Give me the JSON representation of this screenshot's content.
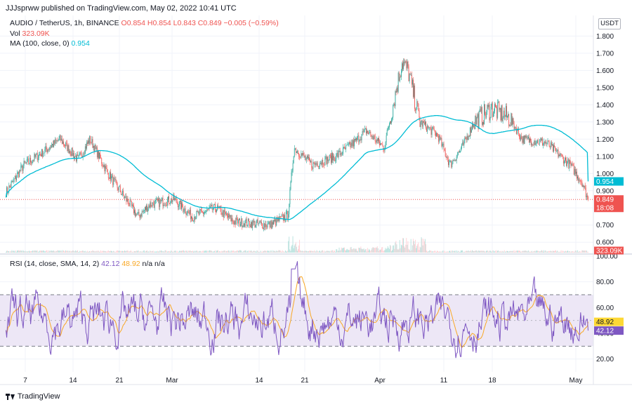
{
  "header": {
    "published": "JJJsprww published on TradingView.com, May 02, 2022 10:41 UTC"
  },
  "legend": {
    "symbol": "AUDIO / TetherUS, 1h, BINANCE",
    "ohlc": "O0.854 H0.854 L0.843 C0.849 −0.005 (−0.59%)",
    "vol_label": "Vol",
    "vol_value": "323.09K",
    "ma_label": "MA (100, close, 0)",
    "ma_value": "0.954",
    "rsi_label": "RSI (14, close, SMA, 14, 2)",
    "rsi_value": "42.12",
    "rsi_sma_value": "48.92",
    "rsi_extra": "n/a n/a"
  },
  "currency_button": "USDT",
  "footer": {
    "brand": "TradingView"
  },
  "colors": {
    "up": "#26a69a",
    "down": "#ef5350",
    "ma": "#00bcd4",
    "rsi": "#7e57c2",
    "rsi_sma": "#f9a825",
    "rsi_band": "#ede7f6"
  },
  "chart_data": [
    {
      "type": "candlestick",
      "title": "AUDIO / TetherUS, 1h, BINANCE",
      "ylim": [
        0.56,
        1.92
      ],
      "y_ticks": [
        "0.600",
        "0.700",
        "0.800",
        "0.900",
        "1.000",
        "1.100",
        "1.200",
        "1.300",
        "1.400",
        "1.500",
        "1.600",
        "1.700",
        "1.800"
      ],
      "x_ticks": [
        "7",
        "14",
        "21",
        "Mar",
        "14",
        "21",
        "Apr",
        "11",
        "18",
        "May"
      ],
      "price_path": [
        {
          "x": 0,
          "y": 0.89
        },
        {
          "x": 3,
          "y": 1.05
        },
        {
          "x": 6,
          "y": 1.12
        },
        {
          "x": 9,
          "y": 1.2
        },
        {
          "x": 12,
          "y": 1.08
        },
        {
          "x": 14,
          "y": 1.2
        },
        {
          "x": 17,
          "y": 1.0
        },
        {
          "x": 20,
          "y": 0.85
        },
        {
          "x": 22,
          "y": 0.75
        },
        {
          "x": 24,
          "y": 0.82
        },
        {
          "x": 28,
          "y": 0.85
        },
        {
          "x": 31,
          "y": 0.75
        },
        {
          "x": 35,
          "y": 0.8
        },
        {
          "x": 38,
          "y": 0.72
        },
        {
          "x": 44,
          "y": 0.7
        },
        {
          "x": 47,
          "y": 0.76
        },
        {
          "x": 48,
          "y": 1.15
        },
        {
          "x": 51,
          "y": 1.05
        },
        {
          "x": 55,
          "y": 1.1
        },
        {
          "x": 58,
          "y": 1.18
        },
        {
          "x": 60,
          "y": 1.25
        },
        {
          "x": 63,
          "y": 1.15
        },
        {
          "x": 66,
          "y": 1.65
        },
        {
          "x": 67,
          "y": 1.6
        },
        {
          "x": 69,
          "y": 1.3
        },
        {
          "x": 72,
          "y": 1.22
        },
        {
          "x": 74,
          "y": 1.05
        },
        {
          "x": 76,
          "y": 1.15
        },
        {
          "x": 78,
          "y": 1.3
        },
        {
          "x": 81,
          "y": 1.38
        },
        {
          "x": 84,
          "y": 1.32
        },
        {
          "x": 86,
          "y": 1.2
        },
        {
          "x": 90,
          "y": 1.18
        },
        {
          "x": 94,
          "y": 1.05
        },
        {
          "x": 96,
          "y": 0.95
        },
        {
          "x": 97,
          "y": 0.849
        }
      ],
      "ma": {
        "name": "MA (100, close, 0)",
        "last": 0.954
      },
      "last_price": 0.849,
      "price_label": "0.849",
      "countdown": "18:08",
      "ma_label": "0.954"
    },
    {
      "type": "bar",
      "title": "Vol",
      "last": "323.09K",
      "last_label": "323.09K"
    },
    {
      "type": "line",
      "title": "RSI (14, close, SMA, 14, 2)",
      "ylim": [
        10,
        100
      ],
      "y_ticks": [
        "20.00",
        "40.00",
        "60.00",
        "80.00",
        "100.00"
      ],
      "band": [
        30,
        70
      ],
      "series": [
        {
          "name": "RSI",
          "last": 42.12,
          "label": "42.12"
        },
        {
          "name": "RSI SMA",
          "last": 48.92,
          "label": "48.92"
        }
      ]
    }
  ]
}
